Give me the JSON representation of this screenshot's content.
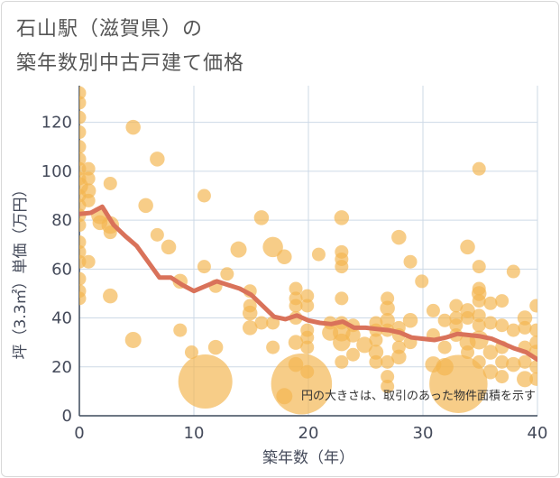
{
  "title": {
    "line1": "石山駅（滋賀県）の",
    "line2": "築年数別中古戸建て価格"
  },
  "chart_data": {
    "type": "scatter",
    "xlabel": "築年数（年）",
    "ylabel": "坪（3.3㎡）単価（万円）",
    "xlim": [
      0,
      40
    ],
    "ylim": [
      0,
      135
    ],
    "x_ticks": [
      0,
      10,
      20,
      30,
      40
    ],
    "y_ticks": [
      0,
      20,
      40,
      60,
      80,
      100,
      120
    ],
    "grid": true,
    "note": "円の大きさは、取引のあった物件面積を示す",
    "colors": {
      "bubble": "#f3b64f",
      "trend": "#d9725a",
      "grid": "#cdd9e6"
    },
    "scatter": [
      {
        "x": 0,
        "y": 132,
        "s": 1
      },
      {
        "x": 0,
        "y": 128,
        "s": 1
      },
      {
        "x": 0,
        "y": 122,
        "s": 1
      },
      {
        "x": 0,
        "y": 116,
        "s": 1
      },
      {
        "x": 0,
        "y": 110,
        "s": 1
      },
      {
        "x": 0,
        "y": 105,
        "s": 1
      },
      {
        "x": 0,
        "y": 101,
        "s": 1
      },
      {
        "x": 0,
        "y": 97,
        "s": 1
      },
      {
        "x": 0,
        "y": 94,
        "s": 1.3
      },
      {
        "x": 0,
        "y": 90,
        "s": 1
      },
      {
        "x": 0,
        "y": 86,
        "s": 1
      },
      {
        "x": 0,
        "y": 82,
        "s": 1
      },
      {
        "x": 0,
        "y": 78,
        "s": 1
      },
      {
        "x": 0,
        "y": 71,
        "s": 1
      },
      {
        "x": 0,
        "y": 67,
        "s": 1
      },
      {
        "x": 0,
        "y": 63,
        "s": 1
      },
      {
        "x": 0,
        "y": 56,
        "s": 1
      },
      {
        "x": 0,
        "y": 51,
        "s": 1
      },
      {
        "x": 0,
        "y": 48,
        "s": 1
      },
      {
        "x": 0.8,
        "y": 101,
        "s": 1
      },
      {
        "x": 0.8,
        "y": 97,
        "s": 1
      },
      {
        "x": 0.8,
        "y": 92,
        "s": 1.1
      },
      {
        "x": 0.8,
        "y": 88,
        "s": 1
      },
      {
        "x": 0.8,
        "y": 63,
        "s": 1
      },
      {
        "x": 1.8,
        "y": 82,
        "s": 1.3
      },
      {
        "x": 1.8,
        "y": 79,
        "s": 1.1
      },
      {
        "x": 2.7,
        "y": 95,
        "s": 1
      },
      {
        "x": 2.7,
        "y": 78,
        "s": 1.3
      },
      {
        "x": 2.7,
        "y": 75,
        "s": 1
      },
      {
        "x": 2.7,
        "y": 49,
        "s": 1.1
      },
      {
        "x": 4.7,
        "y": 118,
        "s": 1.1
      },
      {
        "x": 4.7,
        "y": 31,
        "s": 1.2
      },
      {
        "x": 5.8,
        "y": 86,
        "s": 1.1
      },
      {
        "x": 6.8,
        "y": 105,
        "s": 1.1
      },
      {
        "x": 6.8,
        "y": 74,
        "s": 1
      },
      {
        "x": 7.8,
        "y": 69,
        "s": 1.1
      },
      {
        "x": 8.8,
        "y": 55,
        "s": 1.1
      },
      {
        "x": 8.8,
        "y": 35,
        "s": 1
      },
      {
        "x": 9.8,
        "y": 26,
        "s": 1
      },
      {
        "x": 10.9,
        "y": 90,
        "s": 1
      },
      {
        "x": 10.9,
        "y": 61,
        "s": 1
      },
      {
        "x": 11,
        "y": 14,
        "s": 4
      },
      {
        "x": 11.9,
        "y": 53,
        "s": 1
      },
      {
        "x": 11.9,
        "y": 28,
        "s": 1.1
      },
      {
        "x": 12.9,
        "y": 58,
        "s": 1
      },
      {
        "x": 13.9,
        "y": 68,
        "s": 1.2
      },
      {
        "x": 14.9,
        "y": 51,
        "s": 1
      },
      {
        "x": 14.9,
        "y": 45,
        "s": 1
      },
      {
        "x": 14.9,
        "y": 42,
        "s": 1.1
      },
      {
        "x": 14.9,
        "y": 36,
        "s": 1.1
      },
      {
        "x": 15.9,
        "y": 81,
        "s": 1.1
      },
      {
        "x": 15.9,
        "y": 38,
        "s": 1
      },
      {
        "x": 16.9,
        "y": 69,
        "s": 1.5
      },
      {
        "x": 16.9,
        "y": 38,
        "s": 1
      },
      {
        "x": 16.9,
        "y": 28,
        "s": 1
      },
      {
        "x": 17.9,
        "y": 65,
        "s": 1.1
      },
      {
        "x": 17.9,
        "y": 8,
        "s": 1.2
      },
      {
        "x": 18.9,
        "y": 52,
        "s": 1
      },
      {
        "x": 18.9,
        "y": 48,
        "s": 1
      },
      {
        "x": 18.9,
        "y": 45,
        "s": 1
      },
      {
        "x": 18.9,
        "y": 40,
        "s": 1
      },
      {
        "x": 18.9,
        "y": 30,
        "s": 1.1
      },
      {
        "x": 18.9,
        "y": 21,
        "s": 1.1
      },
      {
        "x": 19.4,
        "y": 13,
        "s": 4.5
      },
      {
        "x": 19.9,
        "y": 49,
        "s": 1
      },
      {
        "x": 19.9,
        "y": 45,
        "s": 1
      },
      {
        "x": 19.9,
        "y": 35,
        "s": 1
      },
      {
        "x": 19.9,
        "y": 32,
        "s": 1
      },
      {
        "x": 19.9,
        "y": 28,
        "s": 1
      },
      {
        "x": 19.9,
        "y": 18,
        "s": 1
      },
      {
        "x": 20.9,
        "y": 66,
        "s": 1
      },
      {
        "x": 21.9,
        "y": 38,
        "s": 1
      },
      {
        "x": 21.9,
        "y": 34,
        "s": 1.2
      },
      {
        "x": 22.9,
        "y": 81,
        "s": 1.1
      },
      {
        "x": 22.9,
        "y": 67,
        "s": 1
      },
      {
        "x": 22.9,
        "y": 64,
        "s": 1
      },
      {
        "x": 22.9,
        "y": 61,
        "s": 1
      },
      {
        "x": 22.9,
        "y": 48,
        "s": 1
      },
      {
        "x": 22.9,
        "y": 38,
        "s": 1
      },
      {
        "x": 22.9,
        "y": 34,
        "s": 1.3
      },
      {
        "x": 22.9,
        "y": 30,
        "s": 1.3
      },
      {
        "x": 22.9,
        "y": 22,
        "s": 1
      },
      {
        "x": 23.9,
        "y": 37,
        "s": 1
      },
      {
        "x": 23.9,
        "y": 33,
        "s": 1.1
      },
      {
        "x": 23.9,
        "y": 25,
        "s": 1
      },
      {
        "x": 24.9,
        "y": 29,
        "s": 1.2
      },
      {
        "x": 25.9,
        "y": 38,
        "s": 1
      },
      {
        "x": 25.9,
        "y": 35,
        "s": 1
      },
      {
        "x": 25.9,
        "y": 31,
        "s": 1
      },
      {
        "x": 25.9,
        "y": 26,
        "s": 1.1
      },
      {
        "x": 25.9,
        "y": 22,
        "s": 1
      },
      {
        "x": 26.9,
        "y": 48,
        "s": 1
      },
      {
        "x": 26.9,
        "y": 44,
        "s": 1.1
      },
      {
        "x": 26.9,
        "y": 39,
        "s": 1.1
      },
      {
        "x": 26.9,
        "y": 35,
        "s": 1
      },
      {
        "x": 26.9,
        "y": 22,
        "s": 1
      },
      {
        "x": 26.9,
        "y": 16,
        "s": 1
      },
      {
        "x": 26.9,
        "y": 12,
        "s": 1
      },
      {
        "x": 27.9,
        "y": 73,
        "s": 1.1
      },
      {
        "x": 27.9,
        "y": 36,
        "s": 1
      },
      {
        "x": 27.9,
        "y": 33,
        "s": 1
      },
      {
        "x": 27.9,
        "y": 28,
        "s": 1
      },
      {
        "x": 27.9,
        "y": 24,
        "s": 1.1
      },
      {
        "x": 28.9,
        "y": 63,
        "s": 1
      },
      {
        "x": 28.9,
        "y": 39,
        "s": 1.1
      },
      {
        "x": 28.9,
        "y": 30,
        "s": 1
      },
      {
        "x": 29.9,
        "y": 55,
        "s": 1
      },
      {
        "x": 30.9,
        "y": 43,
        "s": 1
      },
      {
        "x": 30.9,
        "y": 33,
        "s": 1
      },
      {
        "x": 30.9,
        "y": 21,
        "s": 1.2
      },
      {
        "x": 31.9,
        "y": 39,
        "s": 1
      },
      {
        "x": 31.9,
        "y": 28,
        "s": 1
      },
      {
        "x": 31.9,
        "y": 20,
        "s": 1.3
      },
      {
        "x": 33.1,
        "y": 13,
        "s": 4.3
      },
      {
        "x": 32.9,
        "y": 45,
        "s": 1
      },
      {
        "x": 32.9,
        "y": 40,
        "s": 1
      },
      {
        "x": 32.9,
        "y": 37,
        "s": 1
      },
      {
        "x": 32.9,
        "y": 33,
        "s": 1
      },
      {
        "x": 33.9,
        "y": 69,
        "s": 1.1
      },
      {
        "x": 33.9,
        "y": 43,
        "s": 1.1
      },
      {
        "x": 33.9,
        "y": 40,
        "s": 1
      },
      {
        "x": 33.9,
        "y": 30,
        "s": 1.2
      },
      {
        "x": 33.9,
        "y": 26,
        "s": 1
      },
      {
        "x": 34.9,
        "y": 101,
        "s": 1
      },
      {
        "x": 34.9,
        "y": 61,
        "s": 1
      },
      {
        "x": 34.9,
        "y": 52,
        "s": 1
      },
      {
        "x": 34.9,
        "y": 50,
        "s": 1.1
      },
      {
        "x": 34.9,
        "y": 47,
        "s": 1
      },
      {
        "x": 34.9,
        "y": 41,
        "s": 1
      },
      {
        "x": 34.9,
        "y": 37,
        "s": 1
      },
      {
        "x": 34.9,
        "y": 31,
        "s": 1.4
      },
      {
        "x": 34.9,
        "y": 22,
        "s": 1
      },
      {
        "x": 35.9,
        "y": 46,
        "s": 1
      },
      {
        "x": 35.9,
        "y": 38,
        "s": 1
      },
      {
        "x": 35.9,
        "y": 26,
        "s": 1.1
      },
      {
        "x": 35.9,
        "y": 18,
        "s": 1.1
      },
      {
        "x": 36.9,
        "y": 47,
        "s": 1
      },
      {
        "x": 36.9,
        "y": 37,
        "s": 1
      },
      {
        "x": 36.9,
        "y": 28,
        "s": 1
      },
      {
        "x": 36.9,
        "y": 22,
        "s": 1
      },
      {
        "x": 36.9,
        "y": 16,
        "s": 1
      },
      {
        "x": 37.9,
        "y": 59,
        "s": 1
      },
      {
        "x": 37.9,
        "y": 35,
        "s": 1
      },
      {
        "x": 37.9,
        "y": 21,
        "s": 1.1
      },
      {
        "x": 38.9,
        "y": 40,
        "s": 1.1
      },
      {
        "x": 38.9,
        "y": 36,
        "s": 1
      },
      {
        "x": 38.9,
        "y": 28,
        "s": 1
      },
      {
        "x": 38.9,
        "y": 22,
        "s": 1
      },
      {
        "x": 38.9,
        "y": 15,
        "s": 1.2
      },
      {
        "x": 39.9,
        "y": 45,
        "s": 1
      },
      {
        "x": 39.9,
        "y": 35,
        "s": 1
      },
      {
        "x": 39.9,
        "y": 30,
        "s": 1
      },
      {
        "x": 39.9,
        "y": 26,
        "s": 1.1
      },
      {
        "x": 39.9,
        "y": 20,
        "s": 1
      },
      {
        "x": 39.9,
        "y": 15,
        "s": 1
      }
    ],
    "trend": {
      "x": [
        0,
        1,
        2,
        3,
        4,
        5,
        6,
        7,
        8,
        9,
        10,
        11,
        12,
        13,
        14,
        15,
        16,
        17,
        18,
        19,
        20,
        21,
        22,
        23,
        24,
        25,
        26,
        27,
        28,
        29,
        30,
        31,
        32,
        33,
        34,
        35,
        36,
        37,
        38,
        39,
        40
      ],
      "y": [
        82.5,
        83,
        85.5,
        78,
        73.5,
        69.5,
        63,
        56.5,
        56.5,
        53.5,
        51,
        53,
        55,
        53.5,
        52,
        49.5,
        45,
        40.5,
        39.5,
        41,
        39,
        38,
        37.5,
        38.5,
        36,
        36,
        35.5,
        35,
        34,
        32,
        31.5,
        31,
        32,
        33.5,
        33,
        32.5,
        31.5,
        29.5,
        27.5,
        26,
        23
      ]
    }
  }
}
